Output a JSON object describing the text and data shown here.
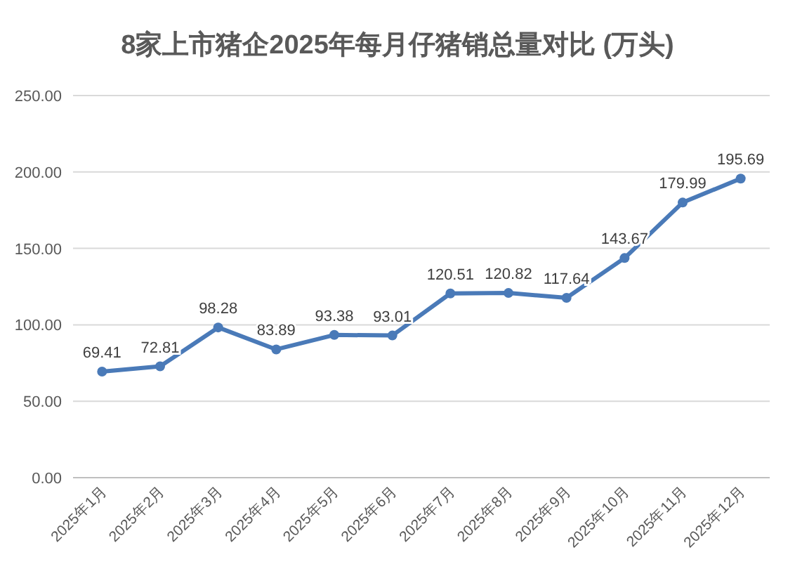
{
  "chart_data": {
    "type": "line",
    "title": "8家上市猪企2025年每月仔猪销总量对比 (万头)",
    "categories": [
      "2025年1月",
      "2025年2月",
      "2025年3月",
      "2025年4月",
      "2025年5月",
      "2025年6月",
      "2025年7月",
      "2025年8月",
      "2025年9月",
      "2025年10月",
      "2025年11月",
      "2025年12月"
    ],
    "series": [
      {
        "color": "#4a7ab8",
        "values": [
          69.41,
          72.81,
          98.28,
          83.89,
          93.38,
          93.01,
          120.51,
          120.82,
          117.64,
          143.67,
          179.99,
          195.69
        ]
      }
    ],
    "ylim": [
      0,
      250
    ],
    "yticks": [
      {
        "value": 0,
        "label": "0.00"
      },
      {
        "value": 50,
        "label": "50.00"
      },
      {
        "value": 100,
        "label": "100.00"
      },
      {
        "value": 150,
        "label": "150.00"
      },
      {
        "value": 200,
        "label": "200.00"
      },
      {
        "value": 250,
        "label": "250.00"
      }
    ],
    "grid": "y",
    "marker": "circle",
    "line_style": "solid",
    "data_labels": true
  }
}
